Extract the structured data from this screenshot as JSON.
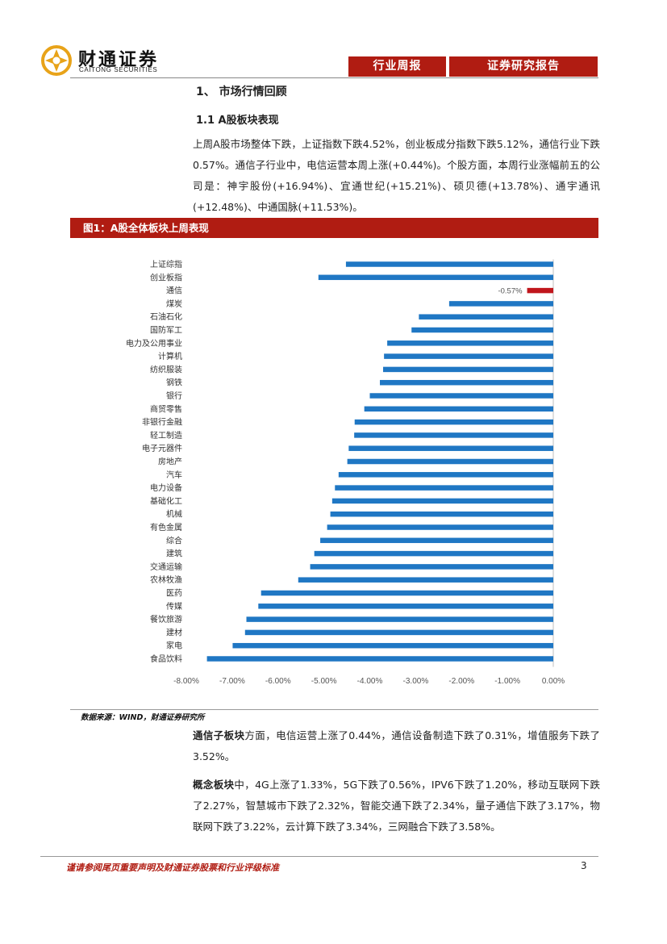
{
  "header": {
    "logo_cn": "财通证券",
    "logo_en": "CAITONG SECURITIES",
    "tag_left": "行业周报",
    "tag_right": "证券研究报告",
    "colors": {
      "brand_red": "#b01c12",
      "bar_blue": "#1f77c4"
    }
  },
  "section": {
    "heading": "1、 市场行情回顾",
    "subheading": "1.1  A股板块表现",
    "intro": "上周A股市场整体下跌，上证指数下跌4.52%，创业板成分指数下跌5.12%，通信行业下跌0.57%。通信子行业中，电信运营本周上涨(+0.44%)。个股方面，本周行业涨幅前五的公司是：神宇股份(+16.94%)、宜通世纪(+15.21%)、硕贝德(+13.78%)、通宇通讯(+12.48%)、中通国脉(+11.53%)。"
  },
  "figure": {
    "title": "图1：A股全体板块上周表现",
    "source": "数据来源：WIND，财通证券研究所"
  },
  "chart_data": {
    "type": "bar",
    "orientation": "horizontal",
    "title": "图1：A股全体板块上周表现",
    "xlim": [
      -8.0,
      0.0
    ],
    "xticks": [
      "-8.00%",
      "-7.00%",
      "-6.00%",
      "-5.00%",
      "-4.00%",
      "-3.00%",
      "-2.00%",
      "-1.00%",
      "0.00%"
    ],
    "categories": [
      "上证综指",
      "创业板指",
      "通信",
      "煤炭",
      "石油石化",
      "国防军工",
      "电力及公用事业",
      "计算机",
      "纺织服装",
      "钢铁",
      "银行",
      "商贸零售",
      "非银行金融",
      "轻工制造",
      "电子元器件",
      "房地产",
      "汽车",
      "电力设备",
      "基础化工",
      "机械",
      "有色金属",
      "综合",
      "建筑",
      "交通运输",
      "农林牧渔",
      "医药",
      "传媒",
      "餐饮旅游",
      "建材",
      "家电",
      "食品饮料"
    ],
    "values": [
      -4.52,
      -5.12,
      -0.57,
      -2.27,
      -2.93,
      -3.09,
      -3.62,
      -3.69,
      -3.71,
      -3.78,
      -4.0,
      -4.12,
      -4.33,
      -4.34,
      -4.46,
      -4.49,
      -4.68,
      -4.76,
      -4.82,
      -4.86,
      -4.93,
      -5.08,
      -5.21,
      -5.3,
      -5.56,
      -6.37,
      -6.43,
      -6.69,
      -6.72,
      -6.99,
      -7.55
    ],
    "highlight": {
      "category": "通信",
      "label": "-0.57%",
      "color": "#c0161c"
    },
    "bar_color": "#1f77c4"
  },
  "analysis": {
    "sub_title": "通信子板块",
    "sub_text": "方面，电信运营上涨了0.44%，通信设备制造下跌了0.31%，增值服务下跌了3.52%。",
    "concept_title": "概念板块",
    "concept_text": "中，4G上涨了1.33%，5G下跌了0.56%，IPV6下跌了1.20%，移动互联网下跌了2.27%，智慧城市下跌了2.32%，智能交通下跌了2.34%，量子通信下跌了3.17%，物联网下跌了3.22%，云计算下跌了3.34%，三网融合下跌了3.58%。"
  },
  "footer": {
    "disclaimer": "谨请参阅尾页重要声明及财通证券股票和行业评级标准",
    "page": "3"
  }
}
